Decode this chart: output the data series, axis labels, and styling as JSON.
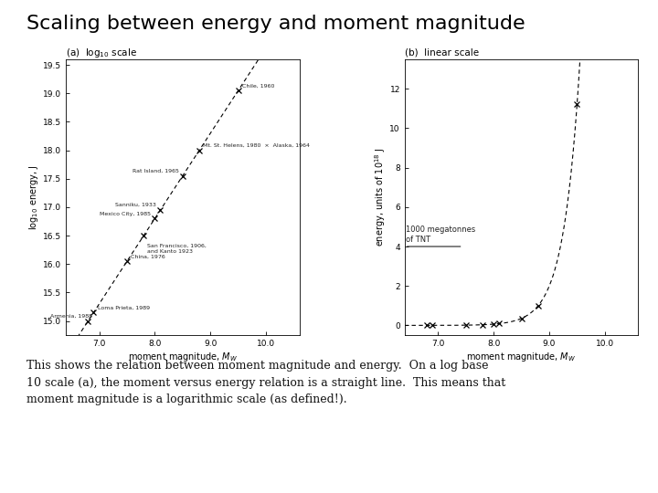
{
  "title": "Scaling between energy and moment magnitude",
  "title_fontsize": 16,
  "bg_color": "#ffffff",
  "panel_a": {
    "label": "(a)  log$_{10}$ scale",
    "xlabel": "moment magnitude, $M_W$",
    "ylabel": "log$_{10}$ energy, J",
    "xlim": [
      6.4,
      10.6
    ],
    "ylim": [
      14.75,
      19.6
    ],
    "xticks": [
      7.0,
      8.0,
      9.0,
      10.0
    ],
    "yticks": [
      15.0,
      15.5,
      16.0,
      16.5,
      17.0,
      17.5,
      18.0,
      18.5,
      19.0,
      19.5
    ],
    "mw_pts": [
      6.8,
      6.9,
      7.5,
      7.8,
      8.0,
      8.1,
      8.5,
      8.8,
      9.5
    ],
    "pt_labels": [
      [
        "Armenia, 1988",
        "right",
        3,
        2
      ],
      [
        "Loma Prieta, 1989",
        "left",
        3,
        2
      ],
      [
        "China, 1976",
        "left",
        3,
        2
      ],
      [
        "San Francisco, 1906,\nand Kanto 1923",
        "left",
        3,
        -14
      ],
      [
        "Mexico City, 1985",
        "right",
        -3,
        2
      ],
      [
        "Sanniku, 1933",
        "right",
        -3,
        2
      ],
      [
        "Rat Island, 1965",
        "right",
        -3,
        2
      ],
      [
        "Mt. St. Helens, 1980  ×  Alaska, 1964",
        "left",
        3,
        2
      ],
      [
        "Chile, 1960",
        "left",
        3,
        2
      ]
    ]
  },
  "panel_b": {
    "label": "(b)  linear scale",
    "xlabel": "moment magnitude, $M_W$",
    "ylabel": "energy, units of $10^{18}$ J",
    "xlim": [
      6.4,
      10.6
    ],
    "ylim": [
      -0.5,
      13.5
    ],
    "xticks": [
      7.0,
      8.0,
      9.0,
      10.0
    ],
    "yticks": [
      0,
      2,
      4,
      6,
      8,
      10,
      12
    ],
    "mw_pts": [
      6.8,
      6.9,
      7.5,
      7.8,
      8.0,
      8.1,
      8.5,
      8.8,
      9.5
    ],
    "tnt_level": 4.0,
    "tnt_label": "1000 megatonnes\nof TNT"
  },
  "log10e_formula_a": 1.5,
  "log10e_formula_b": 4.8,
  "caption": "This shows the relation between moment magnitude and energy.  On a log base\n10 scale (a), the moment versus energy relation is a straight line.  This means that\nmoment magnitude is a logarithmic scale (as defined!)."
}
